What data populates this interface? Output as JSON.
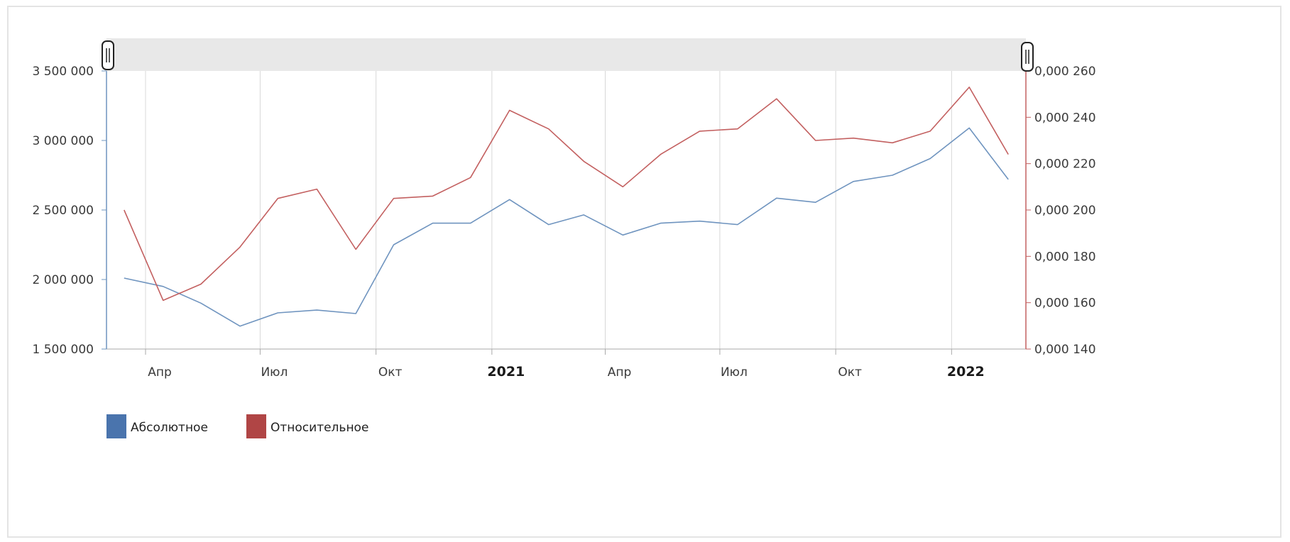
{
  "colors": {
    "absolute": "#6f94bf",
    "relative": "#c36060",
    "absolute_swatch": "#4a74ad",
    "relative_swatch": "#b04545",
    "grid": "#d8d8d8",
    "navigator": "#e8e8e8"
  },
  "legend": [
    {
      "label": "Абсолютное",
      "key": "absolute"
    },
    {
      "label": "Относительное",
      "key": "relative"
    }
  ],
  "chart_data": {
    "type": "line",
    "dates": [
      "2020-03-15",
      "2020-04-15",
      "2020-05-15",
      "2020-06-15",
      "2020-07-15",
      "2020-08-15",
      "2020-09-15",
      "2020-10-15",
      "2020-11-15",
      "2020-12-15",
      "2021-01-15",
      "2021-02-15",
      "2021-03-15",
      "2021-04-15",
      "2021-05-15",
      "2021-06-15",
      "2021-07-15",
      "2021-08-15",
      "2021-09-15",
      "2021-10-15",
      "2021-11-15",
      "2021-12-15",
      "2022-01-15",
      "2022-02-15"
    ],
    "x_ticks": [
      {
        "date": "2020-04-01",
        "label": "Апр",
        "bold": false
      },
      {
        "date": "2020-07-01",
        "label": "Июл",
        "bold": false
      },
      {
        "date": "2020-10-01",
        "label": "Окт",
        "bold": false
      },
      {
        "date": "2021-01-01",
        "label": "2021",
        "bold": true
      },
      {
        "date": "2021-04-01",
        "label": "Апр",
        "bold": false
      },
      {
        "date": "2021-07-01",
        "label": "Июл",
        "bold": false
      },
      {
        "date": "2021-10-01",
        "label": "Окт",
        "bold": false
      },
      {
        "date": "2022-01-01",
        "label": "2022",
        "bold": true
      }
    ],
    "xlim": [
      "2020-03-01",
      "2022-03-01"
    ],
    "y_left": {
      "min": 1500000,
      "max": 3500000,
      "ticks": [
        1500000,
        2000000,
        2500000,
        3000000,
        3500000
      ],
      "tick_labels": [
        "1 500 000",
        "2 000 000",
        "2 500 000",
        "3 000 000",
        "3 500 000"
      ]
    },
    "y_right": {
      "min": 0.00014,
      "max": 0.00026,
      "ticks": [
        0.00014,
        0.00016,
        0.00018,
        0.0002,
        0.00022,
        0.00024,
        0.00026
      ],
      "tick_labels": [
        "0,000 140",
        "0,000 160",
        "0,000 180",
        "0,000 200",
        "0,000 220",
        "0,000 240",
        "0,000 260"
      ]
    },
    "series": [
      {
        "name": "Абсолютное",
        "axis": "left",
        "values": [
          2010000,
          1950000,
          1830000,
          1665000,
          1760000,
          1780000,
          1755000,
          2250000,
          2405000,
          2405000,
          2575000,
          2395000,
          2465000,
          2320000,
          2405000,
          2420000,
          2395000,
          2585000,
          2555000,
          2705000,
          2750000,
          2870000,
          3090000,
          2720000
        ]
      },
      {
        "name": "Относительное",
        "axis": "right",
        "values": [
          0.0002,
          0.000161,
          0.000168,
          0.000184,
          0.000205,
          0.000209,
          0.000183,
          0.000205,
          0.000206,
          0.000214,
          0.000243,
          0.000235,
          0.000221,
          0.00021,
          0.000224,
          0.000234,
          0.000235,
          0.000248,
          0.00023,
          0.000231,
          0.000229,
          0.000234,
          0.000253,
          0.000224
        ]
      }
    ],
    "grid": true,
    "legend_position": "bottom-left"
  }
}
